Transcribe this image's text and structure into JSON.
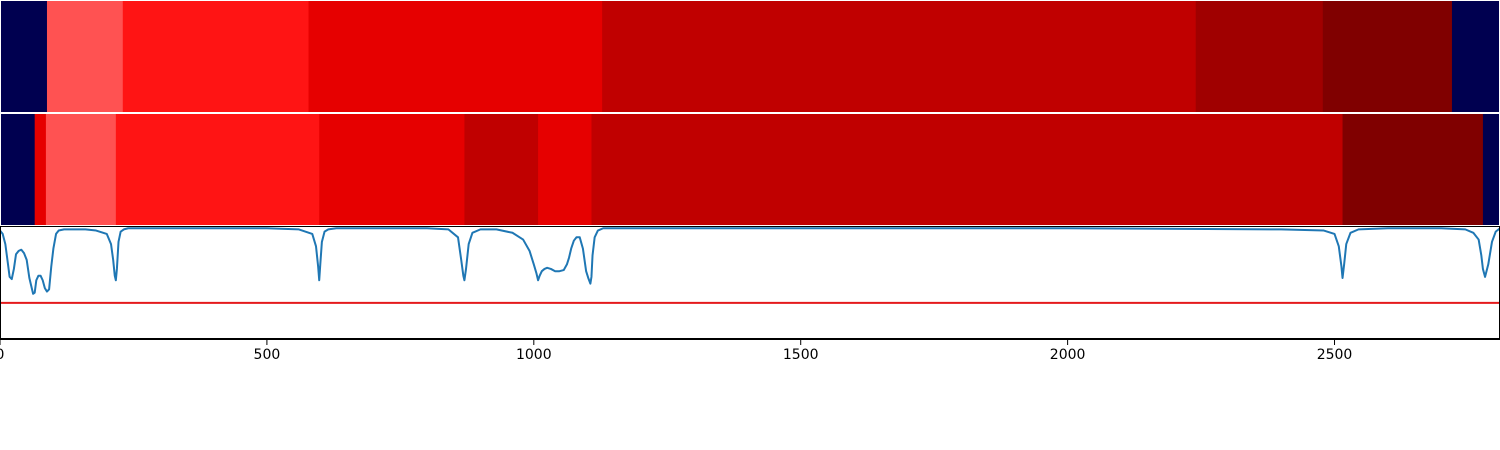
{
  "chart_data": {
    "type": "heatmap",
    "xlim": [
      0,
      2810
    ],
    "xticks": [
      0,
      500,
      1000,
      1500,
      2000,
      2500
    ],
    "xtick_labels": [
      "0",
      "500",
      "1000",
      "1500",
      "2000",
      "2500"
    ],
    "colors": {
      "background": "#000050",
      "line": "#1f77b4",
      "threshold": "#e41a1c",
      "axis": "#000000"
    },
    "band_rows": [
      {
        "segments": [
          {
            "start": 0,
            "end": 88,
            "color": "#000050"
          },
          {
            "start": 88,
            "end": 230,
            "color": "#ff5252"
          },
          {
            "start": 230,
            "end": 578,
            "color": "#ff1414"
          },
          {
            "start": 578,
            "end": 1128,
            "color": "#e60000"
          },
          {
            "start": 1128,
            "end": 2240,
            "color": "#c00000"
          },
          {
            "start": 2240,
            "end": 2478,
            "color": "#a00000"
          },
          {
            "start": 2478,
            "end": 2720,
            "color": "#800000"
          },
          {
            "start": 2720,
            "end": 2810,
            "color": "#000050"
          }
        ]
      },
      {
        "segments": [
          {
            "start": 0,
            "end": 65,
            "color": "#000050"
          },
          {
            "start": 65,
            "end": 86,
            "color": "#e60000"
          },
          {
            "start": 86,
            "end": 217,
            "color": "#ff5252"
          },
          {
            "start": 217,
            "end": 598,
            "color": "#ff1414"
          },
          {
            "start": 598,
            "end": 870,
            "color": "#e60000"
          },
          {
            "start": 870,
            "end": 1008,
            "color": "#c00000"
          },
          {
            "start": 1008,
            "end": 1108,
            "color": "#e60000"
          },
          {
            "start": 1108,
            "end": 2515,
            "color": "#c00000"
          },
          {
            "start": 2515,
            "end": 2778,
            "color": "#800000"
          },
          {
            "start": 2778,
            "end": 2810,
            "color": "#000050"
          }
        ]
      }
    ],
    "line_series": {
      "ylim": [
        0,
        1
      ],
      "threshold": 0.32,
      "x": [
        0,
        5,
        10,
        15,
        18,
        22,
        26,
        30,
        35,
        40,
        45,
        50,
        55,
        58,
        62,
        65,
        68,
        72,
        76,
        80,
        84,
        88,
        92,
        96,
        100,
        105,
        110,
        120,
        140,
        160,
        180,
        200,
        208,
        212,
        215,
        217,
        219,
        222,
        226,
        232,
        240,
        260,
        300,
        400,
        500,
        560,
        585,
        592,
        596,
        598,
        600,
        603,
        608,
        615,
        630,
        700,
        800,
        840,
        858,
        864,
        868,
        870,
        873,
        878,
        885,
        900,
        930,
        960,
        980,
        992,
        1000,
        1005,
        1008,
        1011,
        1015,
        1020,
        1025,
        1032,
        1040,
        1048,
        1056,
        1062,
        1066,
        1070,
        1075,
        1080,
        1086,
        1092,
        1098,
        1102,
        1106,
        1108,
        1110,
        1114,
        1120,
        1130,
        1150,
        1300,
        1600,
        2000,
        2400,
        2480,
        2500,
        2508,
        2513,
        2515,
        2518,
        2522,
        2530,
        2545,
        2600,
        2650,
        2700,
        2745,
        2760,
        2770,
        2775,
        2778,
        2782,
        2788,
        2795,
        2802,
        2810
      ],
      "y": [
        0.96,
        0.93,
        0.84,
        0.66,
        0.55,
        0.53,
        0.62,
        0.75,
        0.78,
        0.79,
        0.76,
        0.7,
        0.54,
        0.48,
        0.4,
        0.41,
        0.52,
        0.56,
        0.56,
        0.52,
        0.45,
        0.42,
        0.44,
        0.64,
        0.8,
        0.93,
        0.96,
        0.97,
        0.97,
        0.97,
        0.96,
        0.93,
        0.84,
        0.7,
        0.56,
        0.52,
        0.62,
        0.86,
        0.95,
        0.97,
        0.98,
        0.98,
        0.98,
        0.98,
        0.98,
        0.97,
        0.93,
        0.82,
        0.64,
        0.52,
        0.66,
        0.86,
        0.95,
        0.97,
        0.98,
        0.98,
        0.98,
        0.97,
        0.9,
        0.7,
        0.56,
        0.52,
        0.62,
        0.84,
        0.94,
        0.97,
        0.97,
        0.94,
        0.88,
        0.78,
        0.66,
        0.58,
        0.52,
        0.56,
        0.6,
        0.62,
        0.63,
        0.62,
        0.6,
        0.6,
        0.61,
        0.66,
        0.72,
        0.8,
        0.87,
        0.9,
        0.9,
        0.8,
        0.6,
        0.54,
        0.49,
        0.55,
        0.74,
        0.9,
        0.96,
        0.98,
        0.98,
        0.98,
        0.98,
        0.98,
        0.97,
        0.96,
        0.93,
        0.82,
        0.64,
        0.54,
        0.66,
        0.84,
        0.94,
        0.97,
        0.98,
        0.98,
        0.98,
        0.97,
        0.94,
        0.88,
        0.74,
        0.62,
        0.55,
        0.66,
        0.86,
        0.95,
        0.98,
        0.98
      ]
    }
  }
}
